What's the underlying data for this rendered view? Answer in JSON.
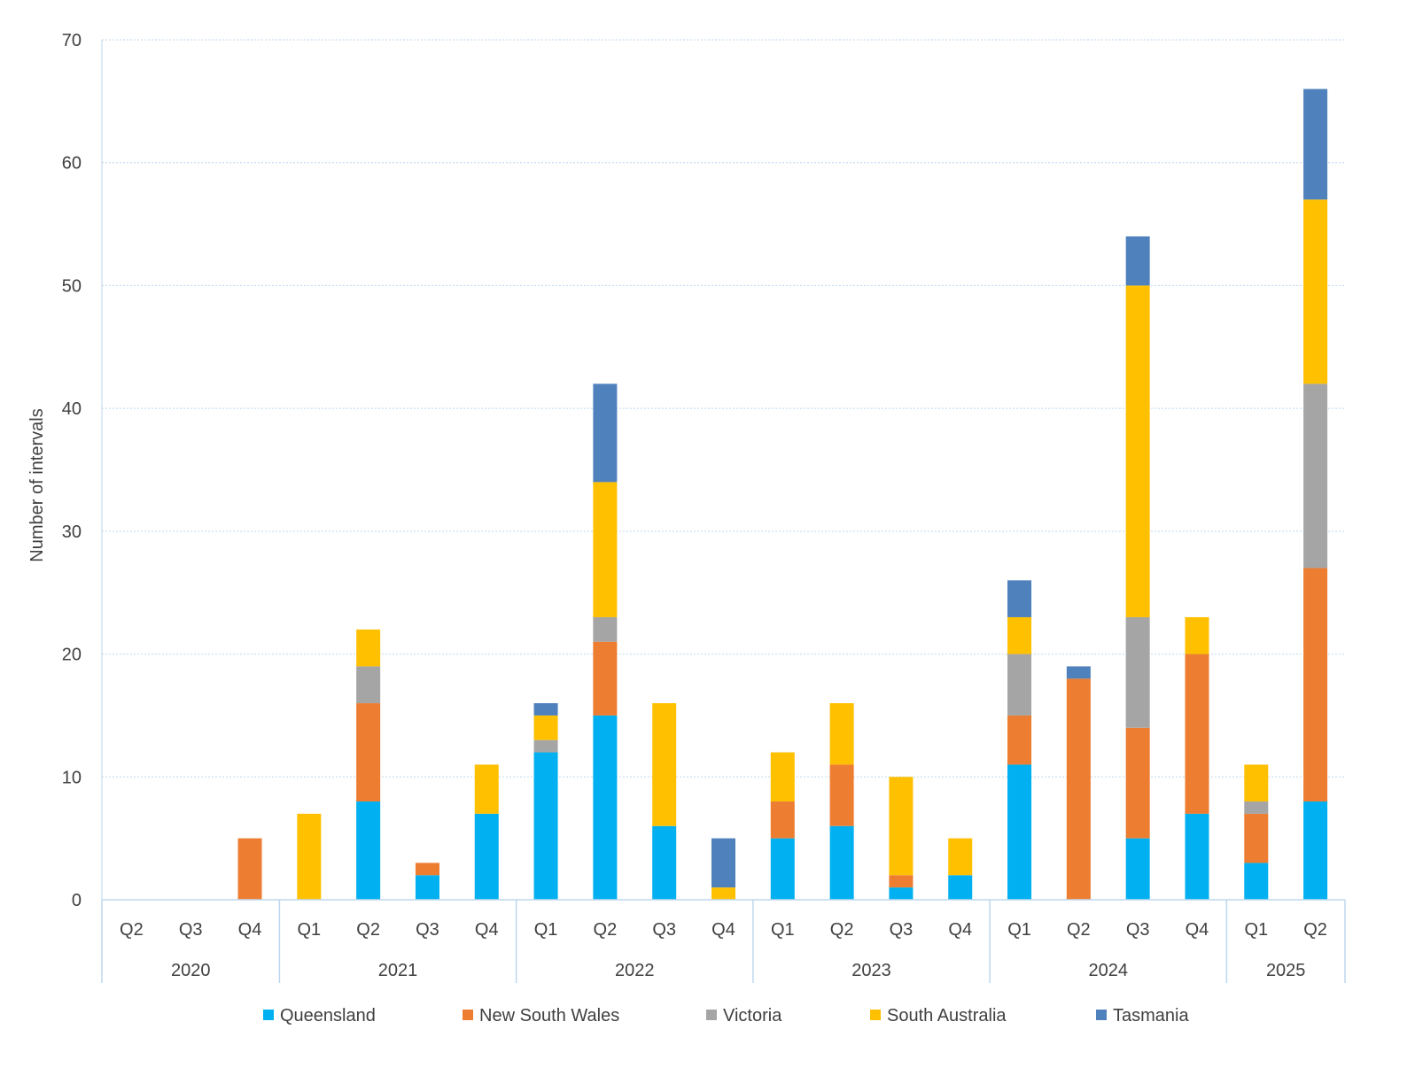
{
  "chart_data": {
    "type": "bar",
    "stacked": true,
    "title": "",
    "ylabel": "Number of intervals",
    "xlabel": "",
    "ylim": [
      0,
      70
    ],
    "yticks": [
      0,
      10,
      20,
      30,
      40,
      50,
      60,
      70
    ],
    "grid": true,
    "legend_position": "bottom",
    "categories": [
      "Q2",
      "Q3",
      "Q4",
      "Q1",
      "Q2",
      "Q3",
      "Q4",
      "Q1",
      "Q2",
      "Q3",
      "Q4",
      "Q1",
      "Q2",
      "Q3",
      "Q4",
      "Q1",
      "Q2",
      "Q3",
      "Q4",
      "Q1",
      "Q2"
    ],
    "years": [
      {
        "label": "2020",
        "count": 3
      },
      {
        "label": "2021",
        "count": 4
      },
      {
        "label": "2022",
        "count": 4
      },
      {
        "label": "2023",
        "count": 4
      },
      {
        "label": "2024",
        "count": 4
      },
      {
        "label": "2025",
        "count": 2
      }
    ],
    "series": [
      {
        "name": "Queensland",
        "color": "#00B0F0",
        "values": [
          0,
          0,
          0,
          0,
          8,
          2,
          7,
          12,
          15,
          6,
          0,
          5,
          6,
          1,
          2,
          11,
          0,
          5,
          7,
          3,
          8
        ]
      },
      {
        "name": "New South Wales",
        "color": "#ED7D31",
        "values": [
          0,
          0,
          5,
          0,
          8,
          1,
          0,
          0,
          6,
          0,
          0,
          3,
          5,
          1,
          0,
          4,
          18,
          9,
          13,
          4,
          19
        ]
      },
      {
        "name": "Victoria",
        "color": "#A5A5A5",
        "values": [
          0,
          0,
          0,
          0,
          3,
          0,
          0,
          1,
          2,
          0,
          0,
          0,
          0,
          0,
          0,
          5,
          0,
          9,
          0,
          1,
          15
        ]
      },
      {
        "name": "South Australia",
        "color": "#FFC000",
        "values": [
          0,
          0,
          0,
          7,
          3,
          0,
          4,
          2,
          11,
          10,
          1,
          4,
          5,
          8,
          3,
          3,
          0,
          27,
          3,
          3,
          15
        ]
      },
      {
        "name": "Tasmania",
        "color": "#4F81BD",
        "values": [
          0,
          0,
          0,
          0,
          0,
          0,
          0,
          1,
          8,
          0,
          4,
          0,
          0,
          0,
          0,
          3,
          1,
          4,
          0,
          0,
          9
        ]
      }
    ]
  }
}
